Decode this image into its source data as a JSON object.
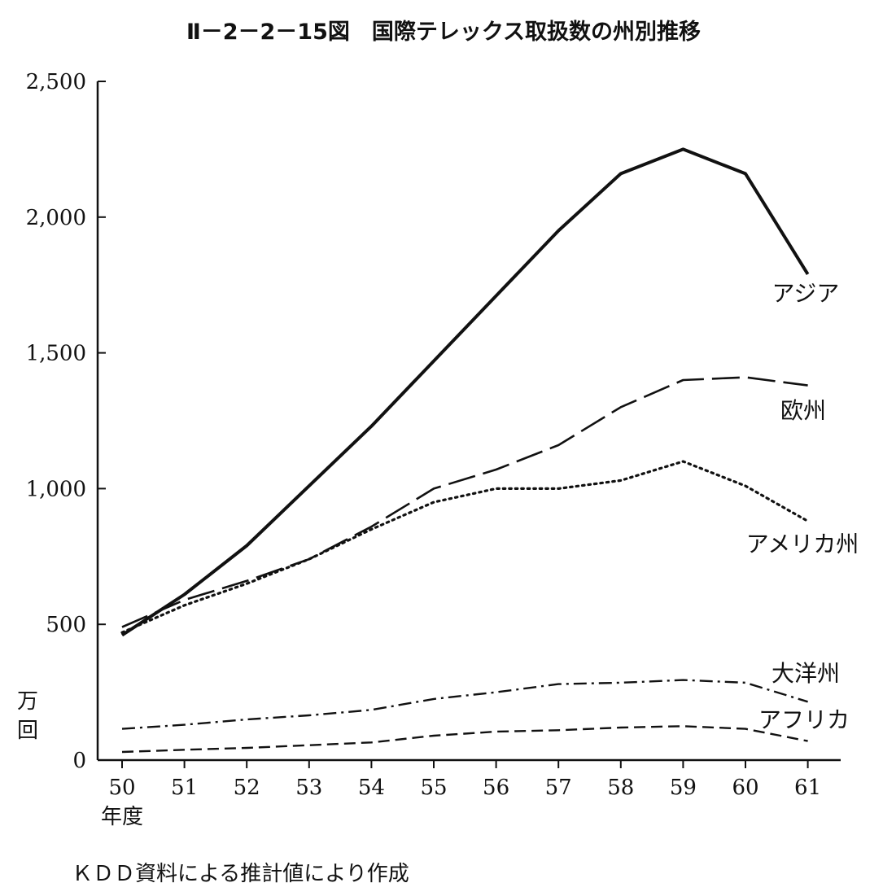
{
  "title": "Ⅱ－2－2－15図　国際テレックス取扱数の州別推移",
  "source_note": "ＫＤＤ資料による推計値により作成",
  "y_unit": [
    "万",
    "回"
  ],
  "x_unit": "年度",
  "chart_data": {
    "type": "line",
    "title": "Ⅱ－2－2－15図　国際テレックス取扱数の州別推移",
    "xlabel": "年度",
    "ylabel": "万回",
    "categories": [
      "50",
      "51",
      "52",
      "53",
      "54",
      "55",
      "56",
      "57",
      "58",
      "59",
      "60",
      "61"
    ],
    "y_ticks": [
      0,
      500,
      1000,
      1500,
      2000,
      2500
    ],
    "y_tick_labels": [
      "0",
      "500",
      "1,000",
      "1,500",
      "2,000",
      "2,500"
    ],
    "ylim": [
      0,
      2500
    ],
    "grid": false,
    "legend": "inline labels at line ends",
    "series": [
      {
        "name": "アジア",
        "style": "solid",
        "color": "#111111",
        "values": [
          460,
          610,
          790,
          1010,
          1230,
          1470,
          1710,
          1950,
          2160,
          2250,
          2160,
          1790
        ]
      },
      {
        "name": "欧州",
        "style": "longdash",
        "color": "#111111",
        "values": [
          490,
          590,
          660,
          740,
          860,
          1000,
          1070,
          1160,
          1300,
          1400,
          1410,
          1380
        ]
      },
      {
        "name": "アメリカ州",
        "style": "dotted",
        "color": "#111111",
        "values": [
          470,
          570,
          650,
          740,
          850,
          950,
          1000,
          1000,
          1030,
          1100,
          1010,
          880
        ]
      },
      {
        "name": "大洋州",
        "style": "dashdot",
        "color": "#111111",
        "values": [
          115,
          130,
          150,
          165,
          185,
          225,
          250,
          280,
          285,
          295,
          285,
          215
        ]
      },
      {
        "name": "アフリカ",
        "style": "shortdash",
        "color": "#111111",
        "values": [
          30,
          38,
          45,
          55,
          65,
          90,
          105,
          110,
          120,
          125,
          115,
          70
        ]
      }
    ]
  }
}
